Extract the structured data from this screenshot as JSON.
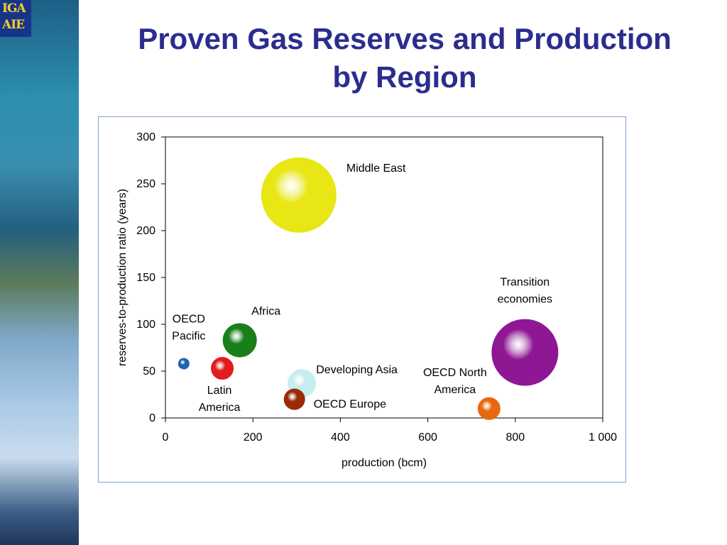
{
  "slide": {
    "title_line1": "Proven Gas Reserves and Production",
    "title_line2": "by Region",
    "logo_line1": "IGA",
    "logo_line2": "AIE"
  },
  "colors": {
    "title": "#2b2d8e",
    "frame_border": "#7ea1cf"
  },
  "chart_data": {
    "type": "scatter",
    "variant": "bubble",
    "title": "",
    "xlabel": "production (bcm)",
    "ylabel": "reserves-to-production ratio (years)",
    "xlim": [
      0,
      1000
    ],
    "ylim": [
      0,
      300
    ],
    "xticks": [
      0,
      200,
      400,
      600,
      800,
      1000
    ],
    "xtick_labels": [
      "0",
      "200",
      "400",
      "600",
      "800",
      "1 000"
    ],
    "yticks": [
      0,
      50,
      100,
      150,
      200,
      250,
      300
    ],
    "ytick_labels": [
      "0",
      "50",
      "100",
      "150",
      "200",
      "250",
      "300"
    ],
    "grid": false,
    "points": [
      {
        "name": "OECD Pacific",
        "x": 42,
        "y": 58,
        "size": 8,
        "color": "#1f63b0",
        "label": [
          "OECD",
          "Pacific"
        ],
        "label_anchor": "left-above"
      },
      {
        "name": "Latin America",
        "x": 130,
        "y": 53,
        "size": 16,
        "color": "#e21b1b",
        "label": [
          "Latin",
          "America"
        ],
        "label_anchor": "below"
      },
      {
        "name": "Africa",
        "x": 170,
        "y": 83,
        "size": 24,
        "color": "#1a7f1a",
        "label": [
          "Africa"
        ],
        "label_anchor": "above-right"
      },
      {
        "name": "Middle East",
        "x": 305,
        "y": 238,
        "size": 53,
        "color": "#e8e614",
        "label": [
          "Middle East"
        ],
        "label_anchor": "right"
      },
      {
        "name": "Developing Asia",
        "x": 312,
        "y": 37,
        "size": 20,
        "color": "#c8ecf0",
        "label": [
          "Developing Asia"
        ],
        "label_anchor": "right-above"
      },
      {
        "name": "OECD Europe",
        "x": 295,
        "y": 20,
        "size": 15,
        "color": "#9b2a07",
        "label": [
          "OECD Europe"
        ],
        "label_anchor": "right-below"
      },
      {
        "name": "OECD North America",
        "x": 740,
        "y": 10,
        "size": 16,
        "color": "#e8690d",
        "label": [
          "OECD North",
          "America"
        ],
        "label_anchor": "left-above"
      },
      {
        "name": "Transition economies",
        "x": 822,
        "y": 70,
        "size": 47,
        "color": "#8e1894",
        "label": [
          "Transition",
          "economies"
        ],
        "label_anchor": "above"
      }
    ]
  }
}
